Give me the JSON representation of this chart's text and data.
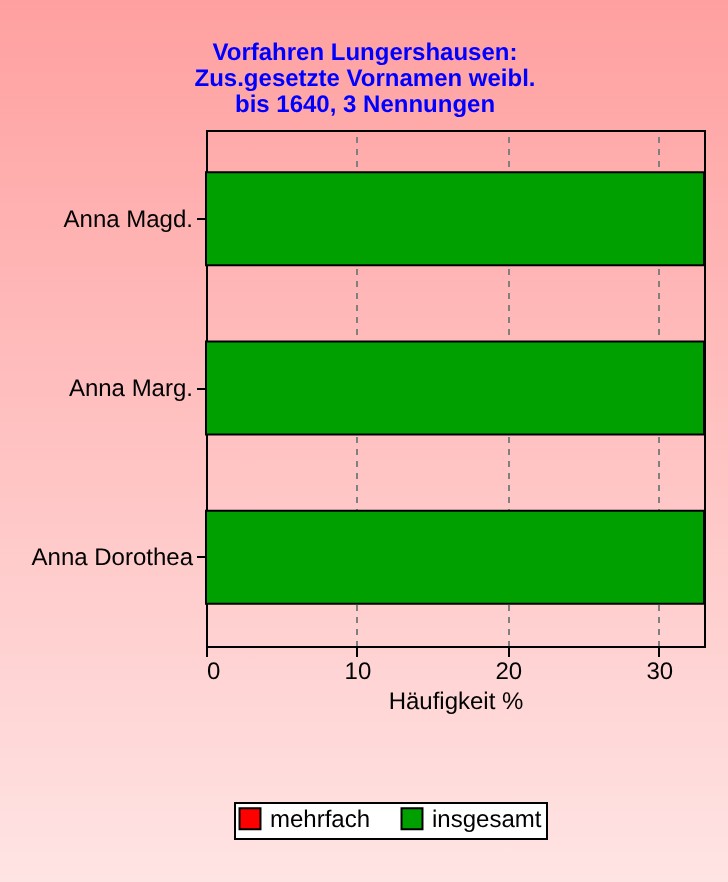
{
  "chart_data": {
    "type": "bar",
    "orientation": "horizontal",
    "title": "Vorfahren Lungershausen:\nZus.gesetzte Vornamen weibl.\nbis 1640, 3 Nennungen",
    "xlabel": "Häufigkeit %",
    "categories": [
      "Anna Magd.",
      "Anna Marg.",
      "Anna Dorothea"
    ],
    "series": [
      {
        "name": "mehrfach",
        "color": "#ff0000",
        "values": [
          null,
          null,
          null
        ]
      },
      {
        "name": "insgesamt",
        "color": "#00a000",
        "values": [
          33,
          33,
          33
        ]
      }
    ],
    "xlim": [
      0,
      33
    ],
    "xticks": [
      0,
      10,
      20,
      30
    ],
    "grid": "x",
    "legend": "bottom"
  }
}
